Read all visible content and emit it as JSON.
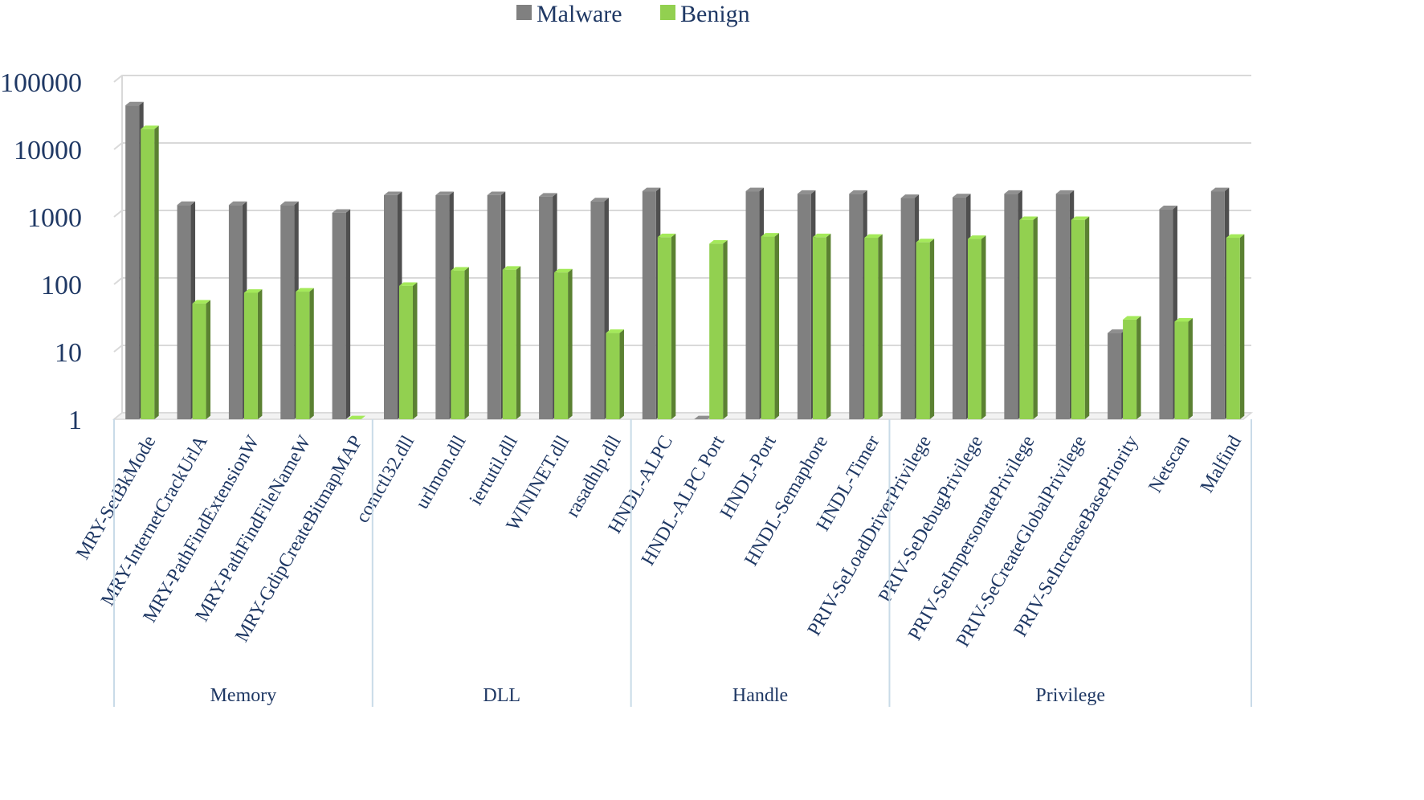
{
  "chart_data": {
    "type": "bar",
    "scale": "log",
    "ylim": [
      1,
      100000
    ],
    "yticks": [
      "1",
      "10",
      "100",
      "1000",
      "10000",
      "100000"
    ],
    "title": "",
    "xlabel": "",
    "ylabel": "",
    "legend_position": "top-center",
    "categories": [
      "MRY-SetBkMode",
      "MRY-InternetCrackUrlA",
      "MRY-PathFindExtensionW",
      "MRY-PathFindFileNameW",
      "MRY-GdipCreateBitmapMAP",
      "comctl32.dll",
      "urlmon.dll",
      "iertutil.dll",
      "WININET.dll",
      "rasadhlp.dll",
      "HNDL-ALPC",
      "HNDL-ALPC Port",
      "HNDL-Port",
      "HNDL-Semaphore",
      "HNDL-Timer",
      "PRIV-SeLoadDriverPrivilege",
      "PRIV-SeDebugPrivilege",
      "PRIV-SeImpersonatePrivilege",
      "PRIV-SeCreateGlobalPrivilege",
      "PRIV-SeIncreaseBasePriority",
      "Netscan",
      "Malfind"
    ],
    "groups": [
      {
        "label": "Memory",
        "start": 0,
        "end": 4
      },
      {
        "label": "DLL",
        "start": 5,
        "end": 9
      },
      {
        "label": "Handle",
        "start": 10,
        "end": 14
      },
      {
        "label": "Privilege",
        "start": 15,
        "end": 21
      }
    ],
    "series": [
      {
        "name": "Malware",
        "color": "#808080",
        "values": [
          45000,
          1500,
          1500,
          1500,
          1150,
          2100,
          2100,
          2100,
          2000,
          1700,
          2400,
          1,
          2400,
          2200,
          2200,
          1900,
          1950,
          2200,
          2200,
          19,
          1300,
          2400
        ]
      },
      {
        "name": "Benign",
        "color": "#92D050",
        "values": [
          20000,
          52,
          75,
          78,
          1,
          95,
          160,
          165,
          150,
          19,
          500,
          400,
          510,
          500,
          490,
          420,
          470,
          900,
          900,
          30,
          28,
          490
        ]
      }
    ]
  }
}
